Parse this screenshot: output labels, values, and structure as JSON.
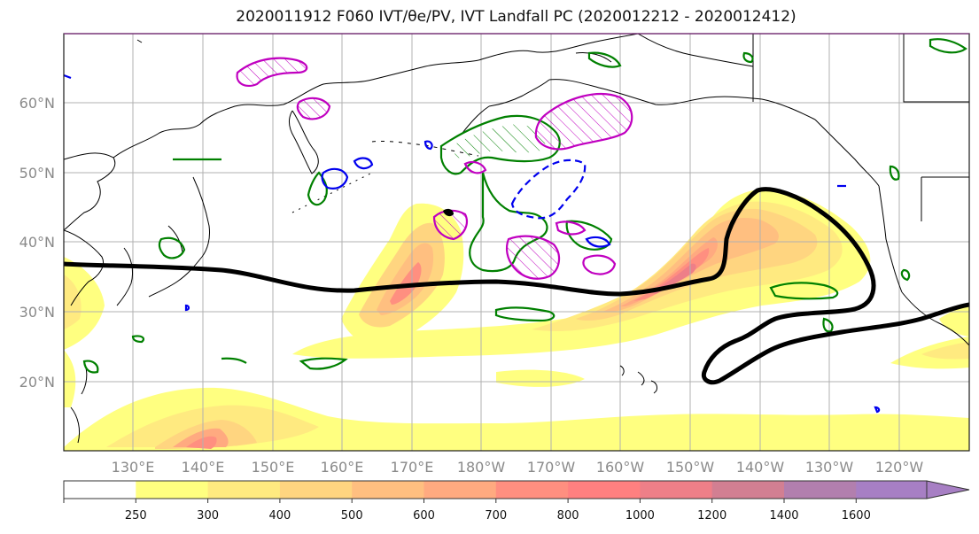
{
  "title": "2020011912 F060 IVT/θe/PV, IVT Landfall PC (2020012212 - 2020012412)",
  "map": {
    "lat_labels": [
      "60°N",
      "50°N",
      "40°N",
      "30°N",
      "20°N"
    ],
    "lon_labels": [
      "130°E",
      "140°E",
      "150°E",
      "160°E",
      "170°E",
      "180°W",
      "170°W",
      "160°W",
      "150°W",
      "140°W",
      "130°W",
      "120°W"
    ]
  },
  "colorbar": {
    "ticks": [
      "250",
      "300",
      "400",
      "500",
      "600",
      "700",
      "800",
      "1000",
      "1200",
      "1400",
      "1600"
    ],
    "colors": [
      "#ffffff",
      "#ffff80",
      "#ffea80",
      "#ffd580",
      "#ffbf80",
      "#ffaa80",
      "#ff8f80",
      "#ff8080",
      "#ee7f88",
      "#d27f92",
      "#b27fae",
      "#a77fc4"
    ]
  },
  "legend_colors": {
    "ivt_pc_contour": "#000000",
    "theta_e": "#008000",
    "pv_positive": "#c000c0",
    "pv_negative": "#0000ee"
  }
}
